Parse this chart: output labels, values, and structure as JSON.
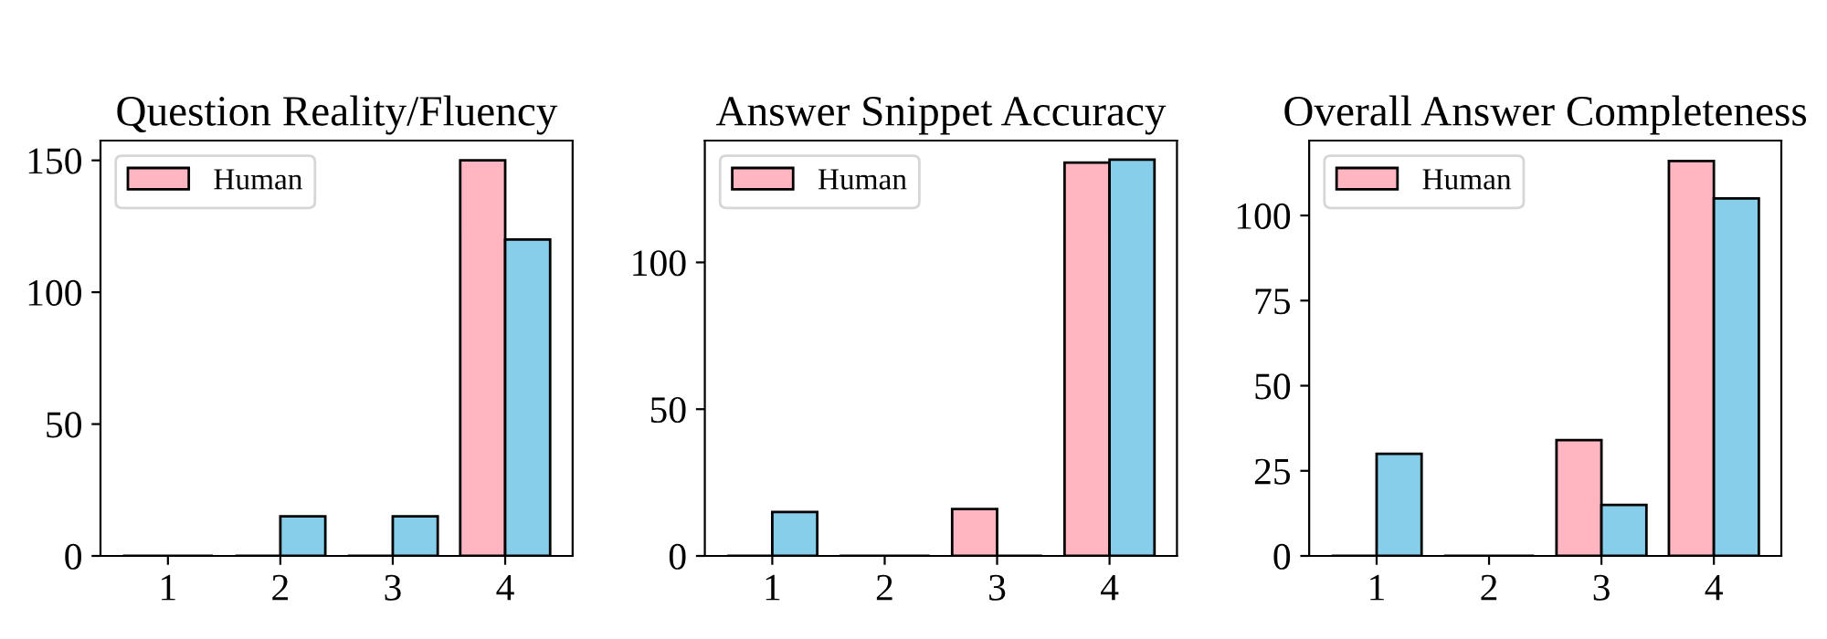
{
  "chart_data": [
    {
      "type": "bar",
      "title": "Question Reality/Fluency",
      "categories": [
        "1",
        "2",
        "3",
        "4"
      ],
      "ylim": [
        0,
        157.5
      ],
      "yticks": [
        0,
        50,
        100,
        150
      ],
      "legend": "top left",
      "series": [
        {
          "name": "Human",
          "color": "#ffb6c1",
          "values": [
            0,
            0,
            0,
            150
          ]
        },
        {
          "color": "#87ceeb",
          "values": [
            0,
            15,
            15,
            120
          ]
        }
      ]
    },
    {
      "type": "bar",
      "title": "Answer Snippet Accuracy",
      "categories": [
        "1",
        "2",
        "3",
        "4"
      ],
      "ylim": [
        0,
        141.5
      ],
      "yticks": [
        0,
        50,
        100
      ],
      "legend": "top left",
      "series": [
        {
          "name": "Human",
          "color": "#ffb6c1",
          "values": [
            0,
            0,
            16,
            134
          ]
        },
        {
          "color": "#87ceeb",
          "values": [
            15,
            0,
            0,
            135
          ]
        }
      ]
    },
    {
      "type": "bar",
      "title": "Overall Answer Completeness",
      "categories": [
        "1",
        "2",
        "3",
        "4"
      ],
      "ylim": [
        0,
        122
      ],
      "yticks": [
        0,
        25,
        50,
        75,
        100
      ],
      "legend": "top left",
      "series": [
        {
          "name": "Human",
          "color": "#ffb6c1",
          "values": [
            0,
            0,
            34,
            116
          ]
        },
        {
          "color": "#87ceeb",
          "values": [
            30,
            0,
            15,
            105
          ]
        }
      ]
    }
  ]
}
